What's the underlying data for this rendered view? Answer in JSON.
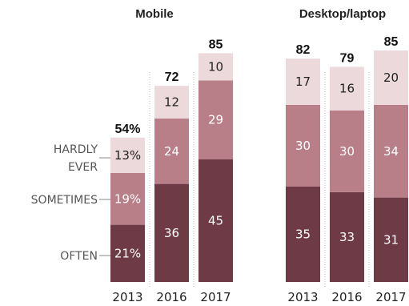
{
  "chart_data": [
    {
      "type": "bar",
      "stacked": true,
      "title": "Mobile",
      "categories": [
        "2013",
        "2016",
        "2017"
      ],
      "totals": [
        "54%",
        "72",
        "85"
      ],
      "series": [
        {
          "name": "OFTEN",
          "values": [
            21,
            36,
            45
          ],
          "labels": [
            "21%",
            "36",
            "45"
          ],
          "color": "#6e3a46",
          "text_color": "#ffffff"
        },
        {
          "name": "SOMETIMES",
          "values": [
            19,
            24,
            29
          ],
          "labels": [
            "19%",
            "24",
            "29"
          ],
          "color": "#b97f88",
          "text_color": "#ffffff"
        },
        {
          "name": "HARDLY EVER",
          "values": [
            13,
            12,
            10
          ],
          "labels": [
            "13%",
            "12",
            "10"
          ],
          "color": "#ecd9dc",
          "text_color": "#222222"
        }
      ]
    },
    {
      "type": "bar",
      "stacked": true,
      "title": "Desktop/laptop",
      "categories": [
        "2013",
        "2016",
        "2017"
      ],
      "totals": [
        "82",
        "79",
        "85"
      ],
      "series": [
        {
          "name": "OFTEN",
          "values": [
            35,
            33,
            31
          ],
          "labels": [
            "35",
            "33",
            "31"
          ],
          "color": "#6e3a46",
          "text_color": "#ffffff"
        },
        {
          "name": "SOMETIMES",
          "values": [
            30,
            30,
            34
          ],
          "labels": [
            "30",
            "30",
            "34"
          ],
          "color": "#b97f88",
          "text_color": "#ffffff"
        },
        {
          "name": "HARDLY EVER",
          "values": [
            17,
            16,
            20
          ],
          "labels": [
            "17",
            "16",
            "20"
          ],
          "color": "#ecd9dc",
          "text_color": "#222222"
        }
      ]
    }
  ],
  "legend": {
    "hardly_ever_line1": "HARDLY",
    "hardly_ever_line2": "EVER",
    "sometimes": "SOMETIMES",
    "often": "OFTEN"
  }
}
